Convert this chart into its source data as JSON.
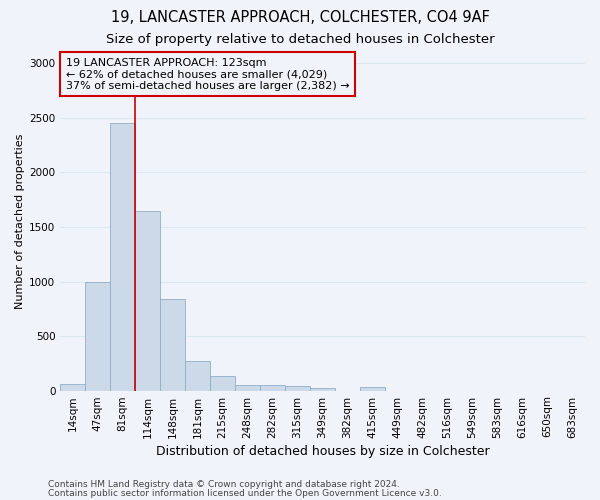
{
  "title1": "19, LANCASTER APPROACH, COLCHESTER, CO4 9AF",
  "title2": "Size of property relative to detached houses in Colchester",
  "xlabel": "Distribution of detached houses by size in Colchester",
  "ylabel": "Number of detached properties",
  "categories": [
    "14sqm",
    "47sqm",
    "81sqm",
    "114sqm",
    "148sqm",
    "181sqm",
    "215sqm",
    "248sqm",
    "282sqm",
    "315sqm",
    "349sqm",
    "382sqm",
    "415sqm",
    "449sqm",
    "482sqm",
    "516sqm",
    "549sqm",
    "583sqm",
    "616sqm",
    "650sqm",
    "683sqm"
  ],
  "values": [
    60,
    1000,
    2450,
    1650,
    840,
    275,
    130,
    50,
    55,
    45,
    20,
    0,
    30,
    0,
    0,
    0,
    0,
    0,
    0,
    0,
    0
  ],
  "bar_color": "#ccd9e8",
  "bar_edge_color": "#90aec8",
  "grid_color": "#dce8f0",
  "vline_x": 2.5,
  "vline_color": "#cc0000",
  "annotation_text": "19 LANCASTER APPROACH: 123sqm\n← 62% of detached houses are smaller (4,029)\n37% of semi-detached houses are larger (2,382) →",
  "annotation_box_color": "#cc0000",
  "ylim": [
    0,
    3100
  ],
  "yticks": [
    0,
    500,
    1000,
    1500,
    2000,
    2500,
    3000
  ],
  "footnote1": "Contains HM Land Registry data © Crown copyright and database right 2024.",
  "footnote2": "Contains public sector information licensed under the Open Government Licence v3.0.",
  "bg_color": "#f0f4fa",
  "title1_fontsize": 10.5,
  "title2_fontsize": 9.5,
  "ann_fontsize": 8.0,
  "xlabel_fontsize": 9,
  "ylabel_fontsize": 8,
  "tick_fontsize": 7.5,
  "footnote_fontsize": 6.5
}
